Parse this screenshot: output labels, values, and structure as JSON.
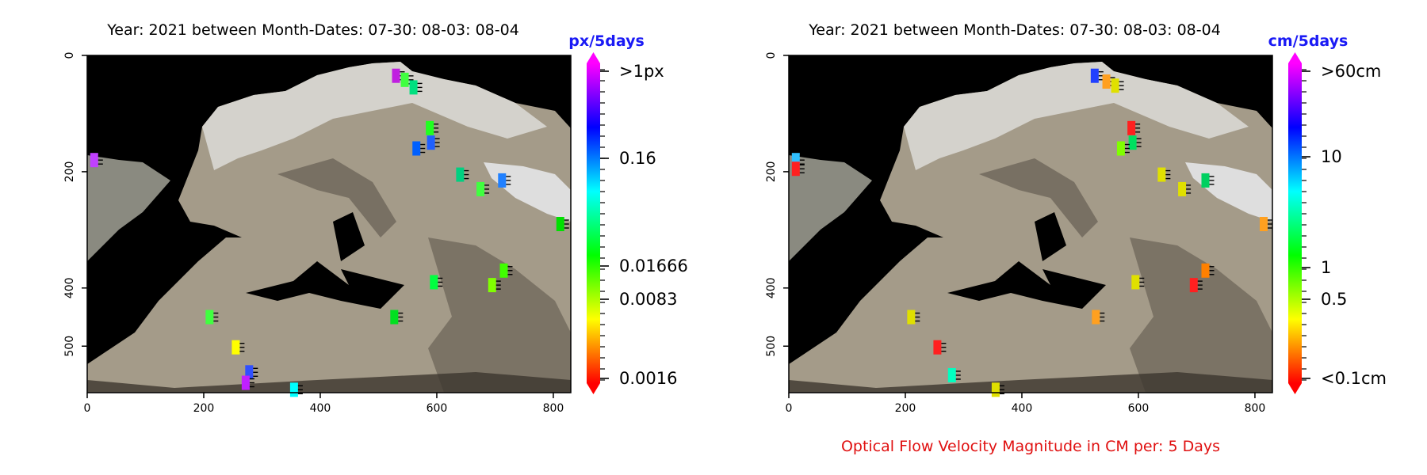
{
  "caption": "Optical Flow Velocity Magnitude in CM per: 5 Days",
  "chart_data": [
    {
      "type": "heatmap",
      "title": "Year: 2021 between Month-Dates: 07-30: 08-03: 08-04",
      "x_ticks": [
        "0",
        "200",
        "400",
        "600",
        "800"
      ],
      "y_ticks": [
        "0",
        "200",
        "400",
        "500"
      ],
      "xlim": [
        0,
        830
      ],
      "ylim": [
        580,
        0
      ],
      "colorbar": {
        "unit": "px/5days",
        "scale": "log",
        "labels": [
          ">1px",
          "0.16",
          "0.01666",
          "0.0083",
          "0.0016"
        ],
        "colormap": [
          "#ff0000",
          "#ffff00",
          "#00ff00",
          "#00ffff",
          "#0000ff",
          "#ff00ff"
        ]
      },
      "points": [
        {
          "x": 12,
          "y": 180,
          "color": "#c040ff"
        },
        {
          "x": 530,
          "y": 35,
          "color": "#c020e0"
        },
        {
          "x": 545,
          "y": 42,
          "color": "#40ff40"
        },
        {
          "x": 560,
          "y": 55,
          "color": "#00e080"
        },
        {
          "x": 590,
          "y": 150,
          "color": "#2060ff"
        },
        {
          "x": 565,
          "y": 160,
          "color": "#0060ff"
        },
        {
          "x": 588,
          "y": 125,
          "color": "#20ff20"
        },
        {
          "x": 640,
          "y": 205,
          "color": "#00d080"
        },
        {
          "x": 712,
          "y": 215,
          "color": "#2080ff"
        },
        {
          "x": 675,
          "y": 230,
          "color": "#40ff40"
        },
        {
          "x": 812,
          "y": 290,
          "color": "#00e000"
        },
        {
          "x": 715,
          "y": 370,
          "color": "#40ff00"
        },
        {
          "x": 695,
          "y": 395,
          "color": "#80ff00"
        },
        {
          "x": 595,
          "y": 390,
          "color": "#00ff40"
        },
        {
          "x": 527,
          "y": 450,
          "color": "#00e020"
        },
        {
          "x": 210,
          "y": 450,
          "color": "#40ff40"
        },
        {
          "x": 255,
          "y": 502,
          "color": "#ffff00"
        },
        {
          "x": 278,
          "y": 545,
          "color": "#3050ff"
        },
        {
          "x": 272,
          "y": 563,
          "color": "#c020ff"
        },
        {
          "x": 355,
          "y": 575,
          "color": "#00ffff"
        }
      ]
    },
    {
      "type": "heatmap",
      "title": "Year: 2021 between Month-Dates: 07-30: 08-03: 08-04",
      "x_ticks": [
        "0",
        "200",
        "400",
        "600",
        "800"
      ],
      "y_ticks": [
        "0",
        "200",
        "400",
        "500"
      ],
      "xlim": [
        0,
        830
      ],
      "ylim": [
        580,
        0
      ],
      "colorbar": {
        "unit": "cm/5days",
        "scale": "log",
        "labels": [
          ">60cm",
          "10",
          "1",
          "0.5",
          "<0.1cm"
        ],
        "colormap": [
          "#ff0000",
          "#ffff00",
          "#00ff00",
          "#00ffff",
          "#0000ff",
          "#ff00ff"
        ]
      },
      "points": [
        {
          "x": 12,
          "y": 180,
          "color": "#30c0ff"
        },
        {
          "x": 12,
          "y": 195,
          "color": "#ff2020"
        },
        {
          "x": 525,
          "y": 35,
          "color": "#2040ff"
        },
        {
          "x": 545,
          "y": 45,
          "color": "#ffa020"
        },
        {
          "x": 560,
          "y": 52,
          "color": "#e0e000"
        },
        {
          "x": 590,
          "y": 150,
          "color": "#00e060"
        },
        {
          "x": 570,
          "y": 160,
          "color": "#80ff00"
        },
        {
          "x": 588,
          "y": 125,
          "color": "#ff2020"
        },
        {
          "x": 640,
          "y": 205,
          "color": "#e0e000"
        },
        {
          "x": 675,
          "y": 230,
          "color": "#e0e000"
        },
        {
          "x": 715,
          "y": 215,
          "color": "#00d060"
        },
        {
          "x": 815,
          "y": 290,
          "color": "#ffa020"
        },
        {
          "x": 715,
          "y": 370,
          "color": "#ff8000"
        },
        {
          "x": 695,
          "y": 395,
          "color": "#ff2020"
        },
        {
          "x": 595,
          "y": 390,
          "color": "#e0e000"
        },
        {
          "x": 527,
          "y": 450,
          "color": "#ffa020"
        },
        {
          "x": 210,
          "y": 450,
          "color": "#e0e000"
        },
        {
          "x": 255,
          "y": 502,
          "color": "#ff2020"
        },
        {
          "x": 280,
          "y": 550,
          "color": "#00ffc0"
        },
        {
          "x": 355,
          "y": 575,
          "color": "#e0e000"
        }
      ]
    }
  ]
}
